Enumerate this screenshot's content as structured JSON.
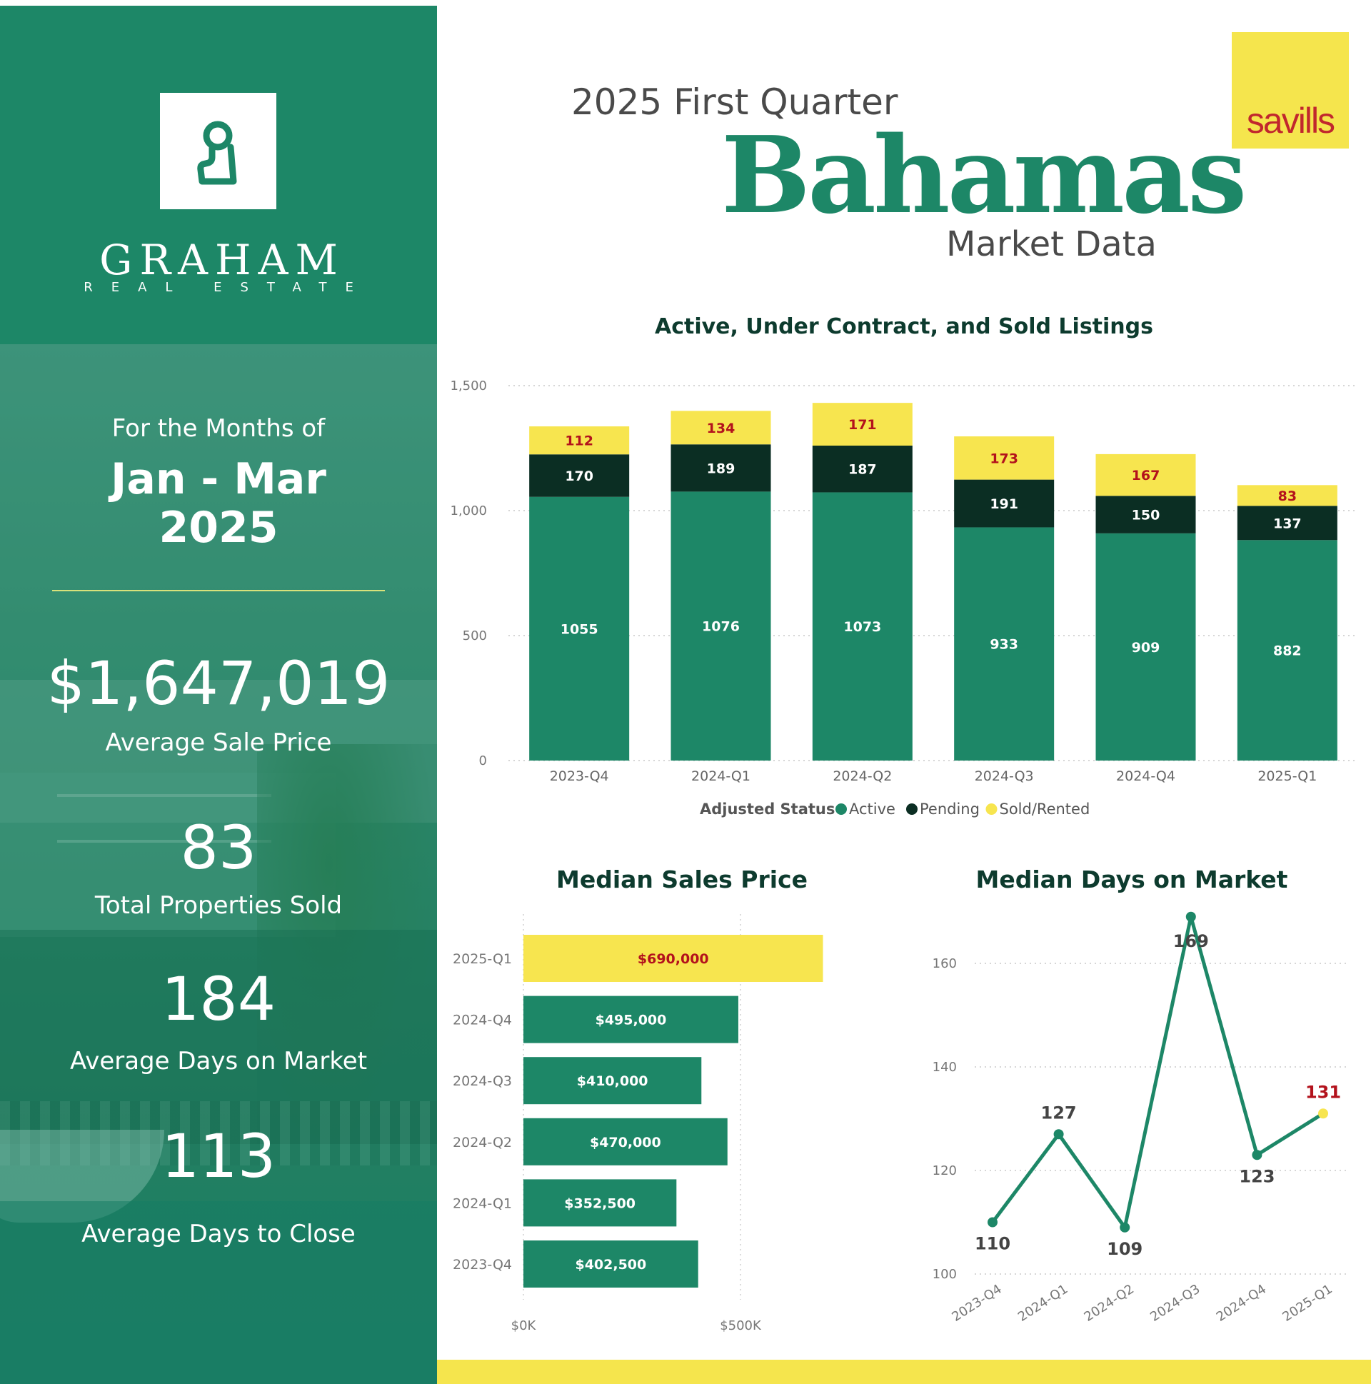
{
  "brand": {
    "name": "GRAHAM",
    "subtitle": "REAL ESTATE"
  },
  "period": {
    "label": "For the Months of",
    "months": "Jan - Mar",
    "year": "2025"
  },
  "stats": [
    {
      "value": "$1,647,019",
      "label": "Average Sale Price"
    },
    {
      "value": "83",
      "label": "Total Properties Sold"
    },
    {
      "value": "184",
      "label": "Average Days on Market"
    },
    {
      "value": "113",
      "label": "Average Days to Close"
    }
  ],
  "header": {
    "quarter": "2025 First Quarter",
    "region": "Bahamas",
    "subtitle": "Market Data",
    "partner_logo": "savills"
  },
  "colors": {
    "active": "#1d8767",
    "pending": "#0b2e23",
    "sold": "#f7e54f",
    "highlight_label": "#b3121c",
    "left_panel": "#1d8767"
  },
  "chart_data": [
    {
      "type": "bar",
      "stacked": true,
      "title": "Active, Under Contract, and Sold Listings",
      "categories": [
        "2023-Q4",
        "2024-Q1",
        "2024-Q2",
        "2024-Q3",
        "2024-Q4",
        "2025-Q1"
      ],
      "series": [
        {
          "name": "Active",
          "values": [
            1055,
            1076,
            1073,
            933,
            909,
            882
          ]
        },
        {
          "name": "Pending",
          "values": [
            170,
            189,
            187,
            191,
            150,
            137
          ]
        },
        {
          "name": "Sold/Rented",
          "values": [
            112,
            134,
            171,
            173,
            167,
            83
          ]
        }
      ],
      "legend_title": "Adjusted Status",
      "legend_position": "bottom",
      "ylim": [
        0,
        1500
      ],
      "yticks": [
        0,
        500,
        1000,
        1500
      ],
      "ytick_labels": [
        "0",
        "500",
        "1,000",
        "1,500"
      ],
      "grid": true
    },
    {
      "type": "bar",
      "orientation": "horizontal",
      "title": "Median Sales Price",
      "categories": [
        "2025-Q1",
        "2024-Q4",
        "2024-Q3",
        "2024-Q2",
        "2024-Q1",
        "2023-Q4"
      ],
      "values": [
        690000,
        495000,
        410000,
        470000,
        352500,
        402500
      ],
      "value_labels": [
        "$690,000",
        "$495,000",
        "$410,000",
        "$470,000",
        "$352,500",
        "$402,500"
      ],
      "highlight_category": "2025-Q1",
      "xlim": [
        0,
        730000
      ],
      "xticks": [
        0,
        500000
      ],
      "xtick_labels": [
        "$0K",
        "$500K"
      ],
      "grid": true
    },
    {
      "type": "line",
      "title": "Median Days on Market",
      "categories": [
        "2023-Q4",
        "2024-Q1",
        "2024-Q2",
        "2024-Q3",
        "2024-Q4",
        "2025-Q1"
      ],
      "values": [
        110,
        127,
        109,
        169,
        123,
        131
      ],
      "value_labels": [
        "110",
        "127",
        "109",
        "169",
        "123",
        "131"
      ],
      "highlight_category": "2025-Q1",
      "ylim": [
        100,
        170
      ],
      "yticks": [
        100,
        120,
        140,
        160
      ],
      "ytick_labels": [
        "100",
        "120",
        "140",
        "160"
      ],
      "grid": true
    }
  ]
}
